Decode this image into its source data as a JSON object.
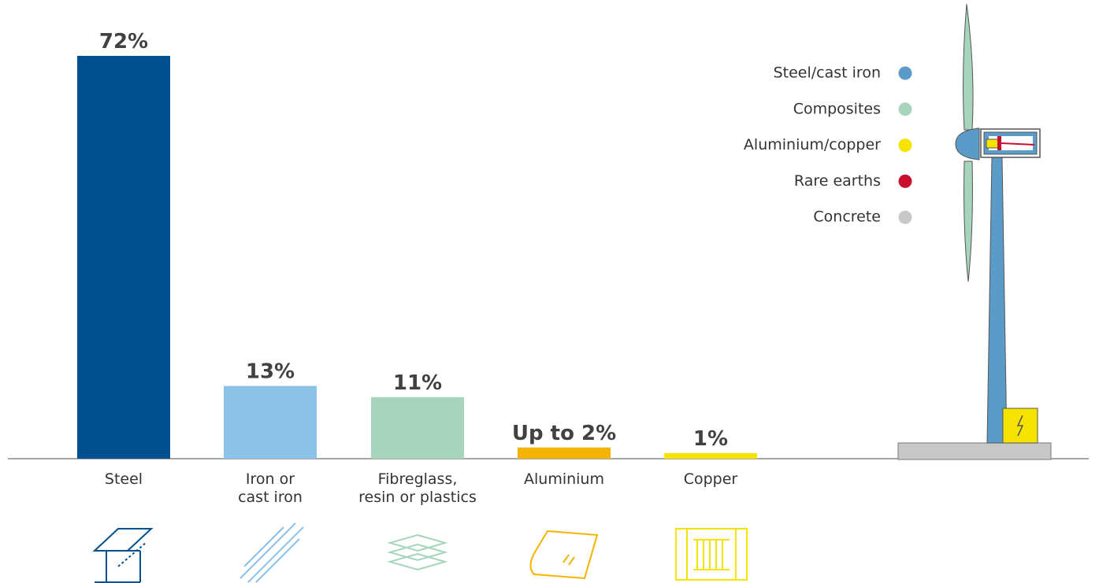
{
  "chart_data": {
    "type": "bar",
    "categories": [
      "Steel",
      "Iron or\ncast iron",
      "Fibreglass,\nresin or plastics",
      "Aluminium",
      "Copper"
    ],
    "values": [
      72,
      13,
      11,
      2,
      1
    ],
    "value_labels": [
      "72%",
      "13%",
      "11%",
      "Up to 2%",
      "1%"
    ],
    "colors": [
      "#00508f",
      "#8cc1e8",
      "#a6d4bc",
      "#f5b300",
      "#f7e300"
    ],
    "ylim": [
      0,
      72
    ],
    "legend": [
      {
        "name": "Steel/cast iron",
        "color": "#5b9bc8"
      },
      {
        "name": "Composites",
        "color": "#a6d4bc"
      },
      {
        "name": "Aluminium/copper",
        "color": "#f7e300"
      },
      {
        "name": "Rare earths",
        "color": "#c8102e"
      },
      {
        "name": "Concrete",
        "color": "#c8c8c8"
      }
    ]
  }
}
